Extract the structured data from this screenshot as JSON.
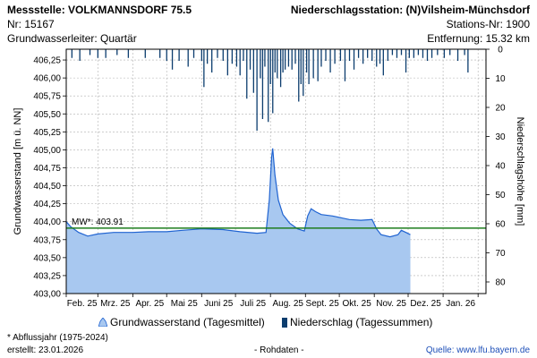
{
  "header": {
    "station_title": "Messstelle: VOLKMANNSDORF 75.5",
    "station_nr": "Nr: 15167",
    "aquifer": "Grundwasserleiter: Quartär",
    "precip_station": "Niederschlagsstation: (N)Vilsheim-Münchsdorf",
    "precip_station_nr": "Stations-Nr: 1900",
    "distance": "Entfernung: 15.32 km"
  },
  "footer": {
    "note": "* Abflussjahr (1975-2024)",
    "created": "erstellt:  23.01.2026",
    "raw": "- Rohdaten -",
    "source": "Quelle:  www.lfu.bayern.de"
  },
  "colors": {
    "groundwater_fill": "#a8c8f0",
    "groundwater_line": "#1f63d1",
    "precip_bar": "#0c3d6e",
    "mean_line": "#1e7d1e",
    "grid": "#b0b0b0"
  },
  "chart_data": {
    "type": "area",
    "ylabel_left": "Grundwasserstand [m ü. NN]",
    "ylabel_right": "Niederschlagshöhe [mm]",
    "left_axis": {
      "ylim": [
        403.0,
        406.4
      ],
      "ticks": [
        "403,00",
        "403,25",
        "403,50",
        "403,75",
        "404,00",
        "404,25",
        "404,50",
        "404,75",
        "405,00",
        "405,25",
        "405,50",
        "405,75",
        "406,00",
        "406,25"
      ]
    },
    "right_axis": {
      "ylim": [
        0,
        84
      ],
      "inverted": true,
      "ticks": [
        "0",
        "10",
        "20",
        "30",
        "40",
        "50",
        "60",
        "70",
        "80"
      ]
    },
    "x_axis": {
      "start": "2025-02-01",
      "end": "2026-02-08",
      "tick_labels": [
        "Feb. 25",
        "Mrz. 25",
        "Apr. 25",
        "Mai 25",
        "Juni 25",
        "Juli 25",
        "Aug. 25",
        "Sept. 25",
        "Okt. 25",
        "Nov. 25",
        "Dez. 25",
        "Jan. 26"
      ]
    },
    "mean": {
      "label": "MW*: 403.91",
      "value": 403.91
    },
    "legend": {
      "groundwater": "Grundwasserstand (Tagesmittel)",
      "precipitation": "Niederschlag (Tagessummen)",
      "placement": "bottom"
    },
    "grid": true,
    "series": [
      {
        "name": "Grundwasserstand (Tagesmittel)",
        "unit": "m ü. NN",
        "points": [
          [
            "2025-02-01",
            404.0
          ],
          [
            "2025-02-05",
            403.93
          ],
          [
            "2025-02-12",
            403.85
          ],
          [
            "2025-02-20",
            403.8
          ],
          [
            "2025-03-01",
            403.83
          ],
          [
            "2025-03-15",
            403.85
          ],
          [
            "2025-04-01",
            403.85
          ],
          [
            "2025-04-15",
            403.86
          ],
          [
            "2025-05-01",
            403.86
          ],
          [
            "2025-05-15",
            403.88
          ],
          [
            "2025-06-01",
            403.9
          ],
          [
            "2025-06-20",
            403.89
          ],
          [
            "2025-07-05",
            403.86
          ],
          [
            "2025-07-20",
            403.84
          ],
          [
            "2025-07-28",
            403.85
          ],
          [
            "2025-07-31",
            404.3
          ],
          [
            "2025-08-02",
            404.9
          ],
          [
            "2025-08-03",
            405.02
          ],
          [
            "2025-08-05",
            404.65
          ],
          [
            "2025-08-08",
            404.3
          ],
          [
            "2025-08-12",
            404.1
          ],
          [
            "2025-08-18",
            403.98
          ],
          [
            "2025-08-25",
            403.9
          ],
          [
            "2025-08-31",
            403.87
          ],
          [
            "2025-09-03",
            404.08
          ],
          [
            "2025-09-06",
            404.18
          ],
          [
            "2025-09-10",
            404.14
          ],
          [
            "2025-09-15",
            404.1
          ],
          [
            "2025-09-25",
            404.08
          ],
          [
            "2025-10-10",
            404.03
          ],
          [
            "2025-10-20",
            404.02
          ],
          [
            "2025-10-30",
            404.03
          ],
          [
            "2025-11-03",
            403.9
          ],
          [
            "2025-11-07",
            403.82
          ],
          [
            "2025-11-15",
            403.79
          ],
          [
            "2025-11-22",
            403.82
          ],
          [
            "2025-11-25",
            403.88
          ],
          [
            "2025-11-29",
            403.85
          ],
          [
            "2025-12-03",
            403.82
          ]
        ]
      },
      {
        "name": "Niederschlag (Tagessummen)",
        "unit": "mm",
        "points": [
          [
            "2025-02-06",
            3
          ],
          [
            "2025-02-13",
            4
          ],
          [
            "2025-02-22",
            2
          ],
          [
            "2025-03-01",
            3
          ],
          [
            "2025-03-08",
            3
          ],
          [
            "2025-03-18",
            2
          ],
          [
            "2025-03-28",
            3
          ],
          [
            "2025-04-12",
            3
          ],
          [
            "2025-04-25",
            3
          ],
          [
            "2025-05-01",
            4
          ],
          [
            "2025-05-06",
            7
          ],
          [
            "2025-05-12",
            4
          ],
          [
            "2025-05-20",
            6
          ],
          [
            "2025-05-25",
            3
          ],
          [
            "2025-06-01",
            4
          ],
          [
            "2025-06-03",
            13
          ],
          [
            "2025-06-06",
            5
          ],
          [
            "2025-06-10",
            8
          ],
          [
            "2025-06-15",
            3
          ],
          [
            "2025-06-20",
            4
          ],
          [
            "2025-06-24",
            9
          ],
          [
            "2025-06-28",
            5
          ],
          [
            "2025-07-02",
            6
          ],
          [
            "2025-07-05",
            9
          ],
          [
            "2025-07-08",
            4
          ],
          [
            "2025-07-11",
            17
          ],
          [
            "2025-07-14",
            7
          ],
          [
            "2025-07-17",
            15
          ],
          [
            "2025-07-20",
            28
          ],
          [
            "2025-07-23",
            10
          ],
          [
            "2025-07-25",
            24
          ],
          [
            "2025-07-27",
            6
          ],
          [
            "2025-07-30",
            25
          ],
          [
            "2025-08-01",
            12
          ],
          [
            "2025-08-03",
            22
          ],
          [
            "2025-08-05",
            8
          ],
          [
            "2025-08-07",
            10
          ],
          [
            "2025-08-10",
            13
          ],
          [
            "2025-08-12",
            8
          ],
          [
            "2025-08-14",
            7
          ],
          [
            "2025-08-17",
            6
          ],
          [
            "2025-08-20",
            7
          ],
          [
            "2025-08-23",
            5
          ],
          [
            "2025-08-26",
            18
          ],
          [
            "2025-08-28",
            12
          ],
          [
            "2025-08-30",
            16
          ],
          [
            "2025-09-02",
            8
          ],
          [
            "2025-09-04",
            12
          ],
          [
            "2025-09-08",
            10
          ],
          [
            "2025-09-12",
            11
          ],
          [
            "2025-09-15",
            6
          ],
          [
            "2025-09-19",
            4
          ],
          [
            "2025-09-23",
            8
          ],
          [
            "2025-09-27",
            5
          ],
          [
            "2025-10-02",
            4
          ],
          [
            "2025-10-06",
            11
          ],
          [
            "2025-10-10",
            4
          ],
          [
            "2025-10-14",
            7
          ],
          [
            "2025-10-18",
            3
          ],
          [
            "2025-10-22",
            5
          ],
          [
            "2025-10-26",
            3
          ],
          [
            "2025-10-30",
            4
          ],
          [
            "2025-11-03",
            6
          ],
          [
            "2025-11-06",
            5
          ],
          [
            "2025-11-09",
            9
          ],
          [
            "2025-11-13",
            4
          ],
          [
            "2025-11-17",
            2
          ],
          [
            "2025-11-21",
            3
          ],
          [
            "2025-11-25",
            2
          ],
          [
            "2025-11-29",
            8
          ],
          [
            "2025-12-02",
            3
          ],
          [
            "2025-12-06",
            3
          ],
          [
            "2025-12-10",
            2
          ],
          [
            "2025-12-14",
            3
          ],
          [
            "2025-12-18",
            4
          ],
          [
            "2025-12-22",
            3
          ],
          [
            "2025-12-27",
            2
          ],
          [
            "2026-01-02",
            3
          ],
          [
            "2026-01-07",
            2
          ],
          [
            "2026-01-14",
            4
          ],
          [
            "2026-01-20",
            2
          ],
          [
            "2026-01-23",
            8
          ]
        ]
      }
    ]
  }
}
